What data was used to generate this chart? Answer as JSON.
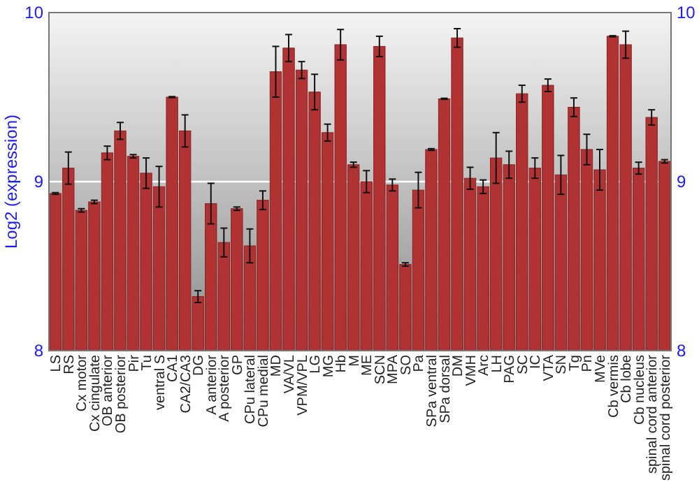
{
  "chart_data": {
    "type": "bar",
    "ylabel": "Log2 (expression)",
    "categories": [
      "LS",
      "RS",
      "Cx motor",
      "Cx cingulate",
      "OB anterior",
      "OB posterior",
      "Pir",
      "Tu",
      "ventral S",
      "CA1",
      "CA2/CA3",
      "DG",
      "A anterior",
      "A posterior",
      "GP",
      "CPu lateral",
      "CPu medial",
      "MD",
      "VA/VL",
      "VPM/VPL",
      "LG",
      "MG",
      "Hb",
      "M",
      "ME",
      "SCN",
      "MPA",
      "SO",
      "Pa",
      "SPa ventral",
      "SPa dorsal",
      "DM",
      "VMH",
      "Arc",
      "LH",
      "PAG",
      "SC",
      "IC",
      "VTA",
      "SN",
      "Tg",
      "Pn",
      "MVe",
      "Cb vermis",
      "Cb lobe",
      "Cb nucleus",
      "spinal cord anterior",
      "spinal cord posterior"
    ],
    "values": [
      8.93,
      9.08,
      8.83,
      8.88,
      9.17,
      9.3,
      9.15,
      9.05,
      8.97,
      9.5,
      9.3,
      8.32,
      8.87,
      8.64,
      8.84,
      8.62,
      8.89,
      9.65,
      9.79,
      9.66,
      9.53,
      9.29,
      9.81,
      9.1,
      9.0,
      9.8,
      8.98,
      8.51,
      8.95,
      9.19,
      9.49,
      9.85,
      9.02,
      8.97,
      9.14,
      9.1,
      9.52,
      9.08,
      9.57,
      9.04,
      9.44,
      9.19,
      9.07,
      9.86,
      9.81,
      9.08,
      9.38,
      9.12
    ],
    "errors": [
      0.005,
      0.095,
      0.01,
      0.01,
      0.04,
      0.05,
      0.01,
      0.09,
      0.12,
      0.003,
      0.095,
      0.035,
      0.12,
      0.085,
      0.01,
      0.1,
      0.055,
      0.15,
      0.08,
      0.05,
      0.105,
      0.05,
      0.09,
      0.015,
      0.065,
      0.06,
      0.035,
      0.01,
      0.105,
      0.005,
      0.003,
      0.055,
      0.065,
      0.04,
      0.15,
      0.08,
      0.05,
      0.06,
      0.037,
      0.115,
      0.055,
      0.09,
      0.12,
      0.003,
      0.08,
      0.035,
      0.045,
      0.01
    ],
    "color": "#b03232",
    "ylim": [
      8,
      10
    ],
    "yticks": [
      8,
      9,
      10
    ],
    "y2lim": [
      8,
      10
    ],
    "y2ticks": [
      8,
      9,
      10
    ],
    "grid": "y"
  }
}
